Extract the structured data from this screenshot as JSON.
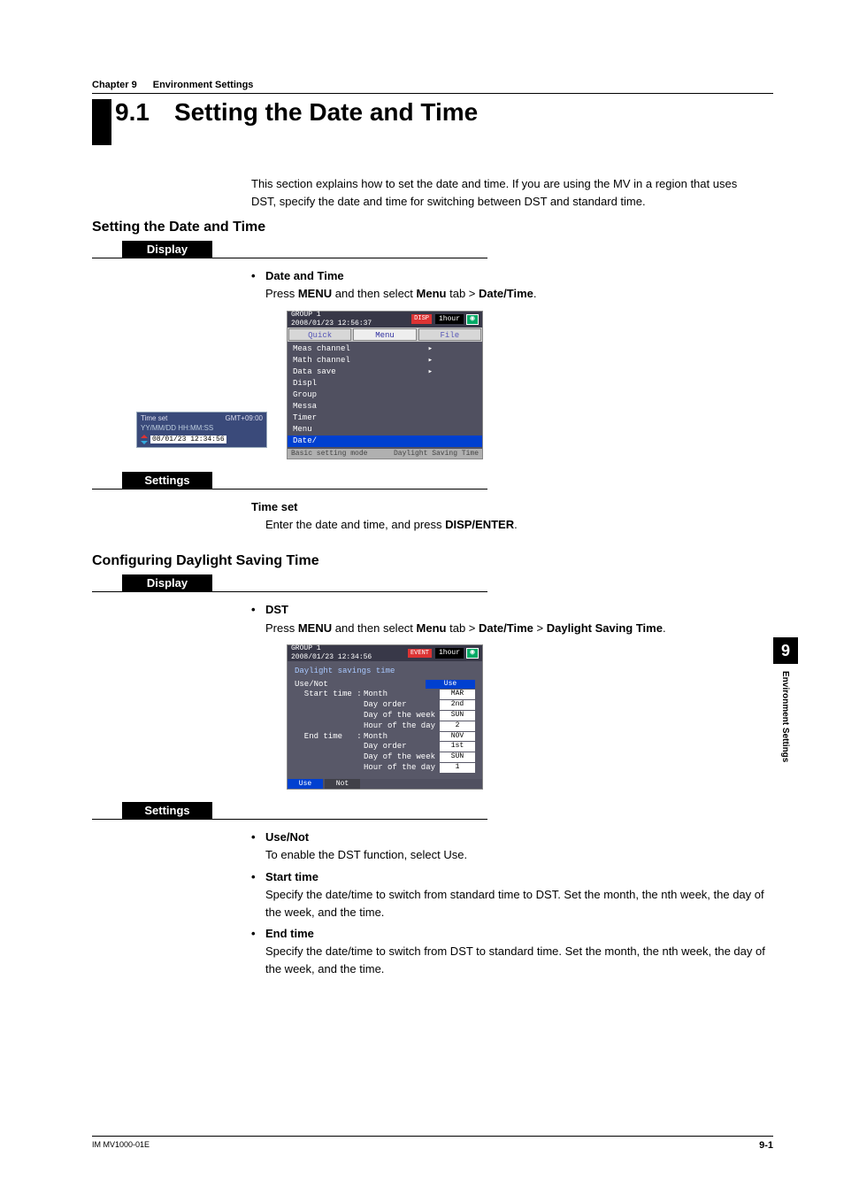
{
  "chapter": {
    "num": "Chapter 9",
    "title": "Environment Settings"
  },
  "section": {
    "num": "9.1",
    "title": "Setting the Date and Time"
  },
  "intro": "This section explains how to set the date and time. If you are using the MV in a region that uses DST, specify the date and time for switching between DST and standard time.",
  "h2_setting": "Setting the Date and Time",
  "pill_display": "Display",
  "pill_settings": "Settings",
  "dt_bullet": "Date and Time",
  "dt_press_a": "Press ",
  "dt_press_menu": "MENU",
  "dt_press_b": " and then select ",
  "dt_press_menu2": "Menu",
  "dt_press_c": " tab > ",
  "dt_press_target": "Date/Time",
  "dt_press_end": ".",
  "timeset_heading": "Time set",
  "timeset_body_a": "Enter the date and time, and press ",
  "timeset_key": "DISP/ENTER",
  "timeset_body_b": ".",
  "h2_dst": "Configuring Daylight Saving Time",
  "dst_bullet": "DST",
  "dst_press_target": "Date/Time",
  "dst_press_sep": " > ",
  "dst_press_target2": "Daylight Saving Time",
  "use_not_h": "Use/Not",
  "use_not_b": "To enable the DST function, select Use.",
  "start_h": "Start time",
  "start_b": "Specify the date/time to switch from standard time to DST. Set the month, the nth week, the day of the week, and the time.",
  "end_h": "End time",
  "end_b": "Specify the date/time to switch from DST to standard time. Set the month, the nth week, the day of the week, and the time.",
  "side": {
    "num": "9",
    "label": "Environment Settings"
  },
  "footer": {
    "doc": "IM MV1000-01E",
    "page": "9-1"
  },
  "dev1_hdr_group": "GROUP 1",
  "dev1_hdr_time": "2008/01/23 12:56:37",
  "dev1_hdr_disp": "DISP",
  "dev1_hdr_hour": "1hour",
  "dev1_tabs": [
    "Quick",
    "Menu",
    "File"
  ],
  "dev1_rows": [
    "Meas channel",
    "Math channel",
    "Data save",
    "Displ",
    "Group",
    "Messa",
    "Timer",
    "Menu ",
    "Date/"
  ],
  "dev1_popup_title": "Time set",
  "dev1_popup_gmt": "GMT+09:00",
  "dev1_popup_fmt": "YY/MM/DD  HH:MM:SS",
  "dev1_popup_val": "08/01/23 12:34:56",
  "dev1_footer_l": "Basic setting mode",
  "dev1_footer_r": "Daylight Saving Time",
  "dev2_hdr_group": "GROUP 1",
  "dev2_hdr_time": "2008/01/23 12:34:56",
  "dev2_hdr_event": "EVENT",
  "dev2_hdr_hour": "1hour",
  "dev2_title": "Daylight savings time",
  "dev2_rows": [
    {
      "label": "Use/Not",
      "field": "",
      "val": "Use",
      "use": true
    },
    {
      "label": "  Start time :",
      "field": "Month",
      "val": "MAR"
    },
    {
      "label": "",
      "field": "Day order",
      "val": "2nd"
    },
    {
      "label": "",
      "field": "Day of the week",
      "val": "SUN"
    },
    {
      "label": "",
      "field": "Hour of the day",
      "val": "2"
    },
    {
      "label": "  End time   :",
      "field": "Month",
      "val": "NOV"
    },
    {
      "label": "",
      "field": "Day order",
      "val": "1st"
    },
    {
      "label": "",
      "field": "Day of the week",
      "val": "SUN"
    },
    {
      "label": "",
      "field": "Hour of the day",
      "val": "1"
    }
  ],
  "dev2_soft": [
    "Use",
    "Not"
  ]
}
